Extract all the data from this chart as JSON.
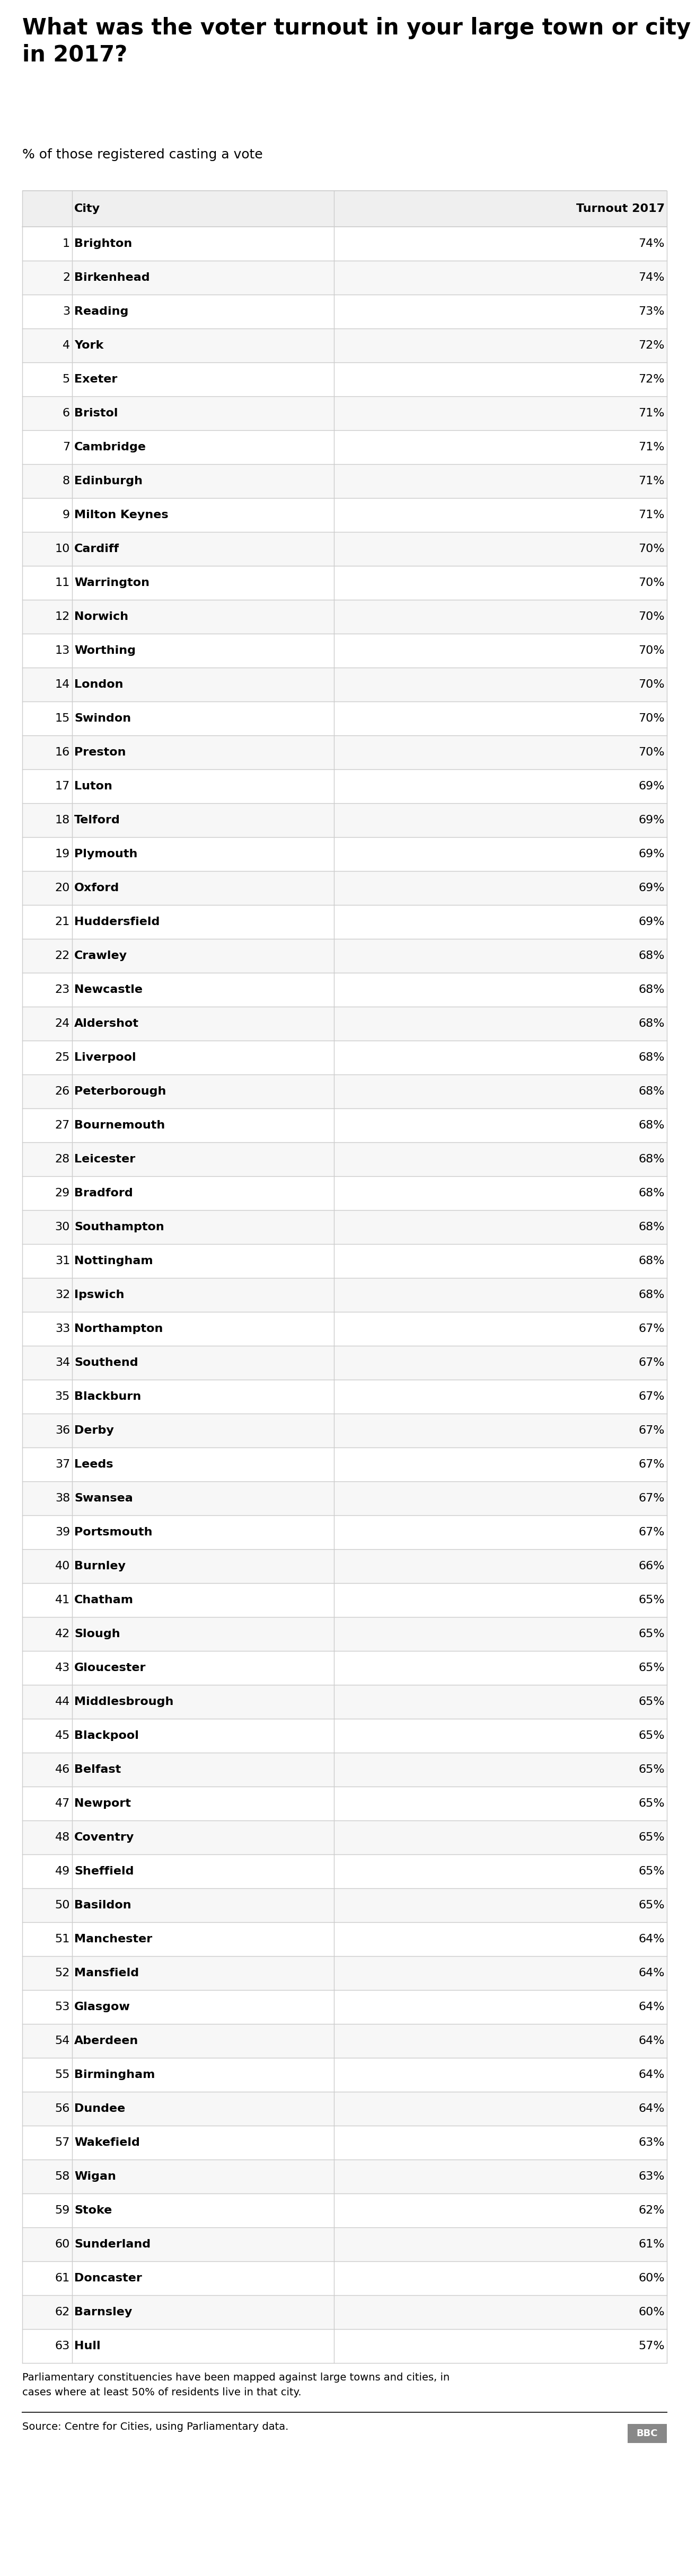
{
  "title": "What was the voter turnout in your large town or city\nin 2017?",
  "subtitle": "% of those registered casting a vote",
  "col_header_city": "City",
  "col_header_turnout": "Turnout 2017",
  "rows": [
    {
      "rank": 1,
      "city": "Brighton",
      "turnout": "74%"
    },
    {
      "rank": 2,
      "city": "Birkenhead",
      "turnout": "74%"
    },
    {
      "rank": 3,
      "city": "Reading",
      "turnout": "73%"
    },
    {
      "rank": 4,
      "city": "York",
      "turnout": "72%"
    },
    {
      "rank": 5,
      "city": "Exeter",
      "turnout": "72%"
    },
    {
      "rank": 6,
      "city": "Bristol",
      "turnout": "71%"
    },
    {
      "rank": 7,
      "city": "Cambridge",
      "turnout": "71%"
    },
    {
      "rank": 8,
      "city": "Edinburgh",
      "turnout": "71%"
    },
    {
      "rank": 9,
      "city": "Milton Keynes",
      "turnout": "71%"
    },
    {
      "rank": 10,
      "city": "Cardiff",
      "turnout": "70%"
    },
    {
      "rank": 11,
      "city": "Warrington",
      "turnout": "70%"
    },
    {
      "rank": 12,
      "city": "Norwich",
      "turnout": "70%"
    },
    {
      "rank": 13,
      "city": "Worthing",
      "turnout": "70%"
    },
    {
      "rank": 14,
      "city": "London",
      "turnout": "70%"
    },
    {
      "rank": 15,
      "city": "Swindon",
      "turnout": "70%"
    },
    {
      "rank": 16,
      "city": "Preston",
      "turnout": "70%"
    },
    {
      "rank": 17,
      "city": "Luton",
      "turnout": "69%"
    },
    {
      "rank": 18,
      "city": "Telford",
      "turnout": "69%"
    },
    {
      "rank": 19,
      "city": "Plymouth",
      "turnout": "69%"
    },
    {
      "rank": 20,
      "city": "Oxford",
      "turnout": "69%"
    },
    {
      "rank": 21,
      "city": "Huddersfield",
      "turnout": "69%"
    },
    {
      "rank": 22,
      "city": "Crawley",
      "turnout": "68%"
    },
    {
      "rank": 23,
      "city": "Newcastle",
      "turnout": "68%"
    },
    {
      "rank": 24,
      "city": "Aldershot",
      "turnout": "68%"
    },
    {
      "rank": 25,
      "city": "Liverpool",
      "turnout": "68%"
    },
    {
      "rank": 26,
      "city": "Peterborough",
      "turnout": "68%"
    },
    {
      "rank": 27,
      "city": "Bournemouth",
      "turnout": "68%"
    },
    {
      "rank": 28,
      "city": "Leicester",
      "turnout": "68%"
    },
    {
      "rank": 29,
      "city": "Bradford",
      "turnout": "68%"
    },
    {
      "rank": 30,
      "city": "Southampton",
      "turnout": "68%"
    },
    {
      "rank": 31,
      "city": "Nottingham",
      "turnout": "68%"
    },
    {
      "rank": 32,
      "city": "Ipswich",
      "turnout": "68%"
    },
    {
      "rank": 33,
      "city": "Northampton",
      "turnout": "67%"
    },
    {
      "rank": 34,
      "city": "Southend",
      "turnout": "67%"
    },
    {
      "rank": 35,
      "city": "Blackburn",
      "turnout": "67%"
    },
    {
      "rank": 36,
      "city": "Derby",
      "turnout": "67%"
    },
    {
      "rank": 37,
      "city": "Leeds",
      "turnout": "67%"
    },
    {
      "rank": 38,
      "city": "Swansea",
      "turnout": "67%"
    },
    {
      "rank": 39,
      "city": "Portsmouth",
      "turnout": "67%"
    },
    {
      "rank": 40,
      "city": "Burnley",
      "turnout": "66%"
    },
    {
      "rank": 41,
      "city": "Chatham",
      "turnout": "65%"
    },
    {
      "rank": 42,
      "city": "Slough",
      "turnout": "65%"
    },
    {
      "rank": 43,
      "city": "Gloucester",
      "turnout": "65%"
    },
    {
      "rank": 44,
      "city": "Middlesbrough",
      "turnout": "65%"
    },
    {
      "rank": 45,
      "city": "Blackpool",
      "turnout": "65%"
    },
    {
      "rank": 46,
      "city": "Belfast",
      "turnout": "65%"
    },
    {
      "rank": 47,
      "city": "Newport",
      "turnout": "65%"
    },
    {
      "rank": 48,
      "city": "Coventry",
      "turnout": "65%"
    },
    {
      "rank": 49,
      "city": "Sheffield",
      "turnout": "65%"
    },
    {
      "rank": 50,
      "city": "Basildon",
      "turnout": "65%"
    },
    {
      "rank": 51,
      "city": "Manchester",
      "turnout": "64%"
    },
    {
      "rank": 52,
      "city": "Mansfield",
      "turnout": "64%"
    },
    {
      "rank": 53,
      "city": "Glasgow",
      "turnout": "64%"
    },
    {
      "rank": 54,
      "city": "Aberdeen",
      "turnout": "64%"
    },
    {
      "rank": 55,
      "city": "Birmingham",
      "turnout": "64%"
    },
    {
      "rank": 56,
      "city": "Dundee",
      "turnout": "64%"
    },
    {
      "rank": 57,
      "city": "Wakefield",
      "turnout": "63%"
    },
    {
      "rank": 58,
      "city": "Wigan",
      "turnout": "63%"
    },
    {
      "rank": 59,
      "city": "Stoke",
      "turnout": "62%"
    },
    {
      "rank": 60,
      "city": "Sunderland",
      "turnout": "61%"
    },
    {
      "rank": 61,
      "city": "Doncaster",
      "turnout": "60%"
    },
    {
      "rank": 62,
      "city": "Barnsley",
      "turnout": "60%"
    },
    {
      "rank": 63,
      "city": "Hull",
      "turnout": "57%"
    }
  ],
  "footnote_line1": "Parliamentary constituencies have been mapped against large towns and cities, in",
  "footnote_line2": "cases where at least 50% of residents live in that city.",
  "source": "Source: Centre for Cities, using Parliamentary data.",
  "header_bg": "#efefef",
  "row_bg_odd": "#ffffff",
  "row_bg_even": "#f7f7f7",
  "border_color": "#cccccc",
  "text_color": "#000000",
  "bbc_bg": "#888888"
}
